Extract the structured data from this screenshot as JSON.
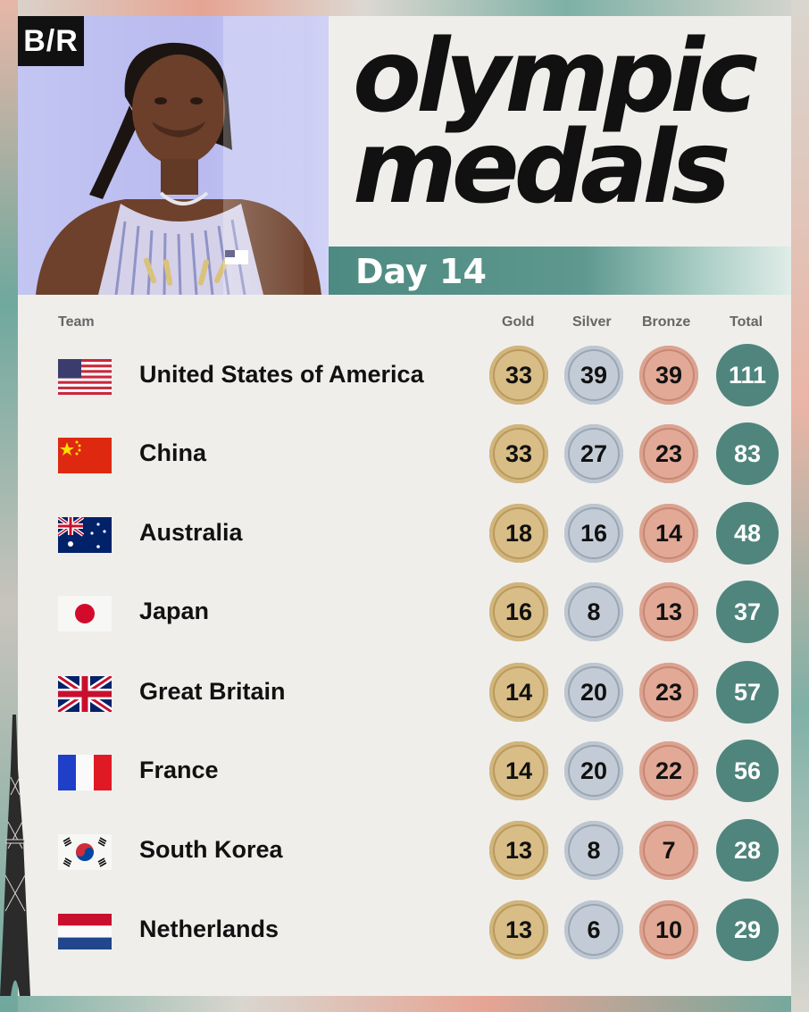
{
  "brand": {
    "logo_text": "B/R"
  },
  "title": {
    "line1": "olympic",
    "line2": "medals"
  },
  "day_label": "Day 14",
  "table": {
    "headers": {
      "team": "Team",
      "gold": "Gold",
      "silver": "Silver",
      "bronze": "Bronze",
      "total": "Total"
    },
    "rows": [
      {
        "team": "United States of America",
        "flag": "usa-flag",
        "gold": "33",
        "silver": "39",
        "bronze": "39",
        "total": "111"
      },
      {
        "team": "China",
        "flag": "china-flag",
        "gold": "33",
        "silver": "27",
        "bronze": "23",
        "total": "83"
      },
      {
        "team": "Australia",
        "flag": "australia-flag",
        "gold": "18",
        "silver": "16",
        "bronze": "14",
        "total": "48"
      },
      {
        "team": "Japan",
        "flag": "japan-flag",
        "gold": "16",
        "silver": "8",
        "bronze": "13",
        "total": "37"
      },
      {
        "team": "Great Britain",
        "flag": "great-britain-flag",
        "gold": "14",
        "silver": "20",
        "bronze": "23",
        "total": "57"
      },
      {
        "team": "France",
        "flag": "france-flag",
        "gold": "14",
        "silver": "20",
        "bronze": "22",
        "total": "56"
      },
      {
        "team": "South Korea",
        "flag": "south-korea-flag",
        "gold": "13",
        "silver": "8",
        "bronze": "7",
        "total": "28"
      },
      {
        "team": "Netherlands",
        "flag": "netherlands-flag",
        "gold": "13",
        "silver": "6",
        "bronze": "10",
        "total": "29"
      }
    ]
  },
  "colors": {
    "accent": "#4f857d",
    "gold": "#d9bd86",
    "silver": "#c3ccd6",
    "bronze": "#e2a996"
  }
}
